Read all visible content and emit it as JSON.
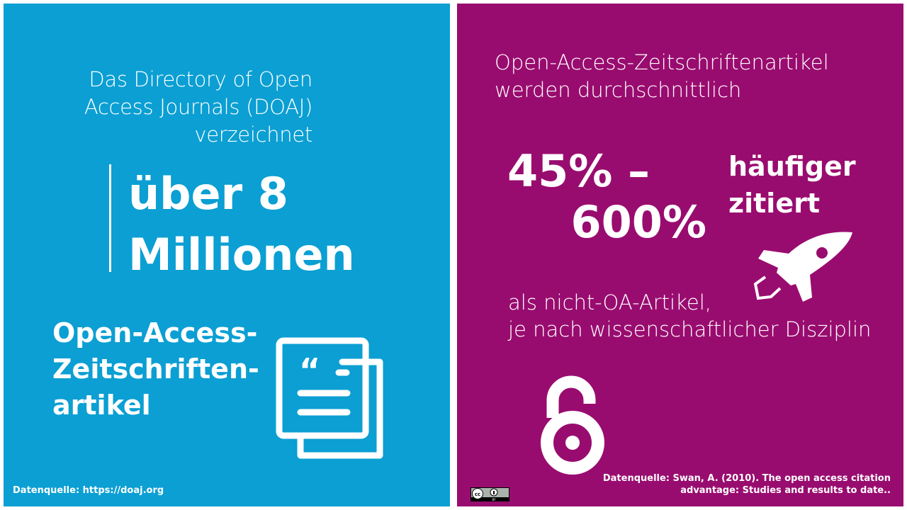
{
  "colors": {
    "left_bg": "#0b9fd3",
    "right_bg": "#990c6f",
    "text": "#ffffff"
  },
  "left": {
    "intro": [
      "Das Directory of Open",
      "Access Journals (DOAJ)",
      "verzeichnet"
    ],
    "big": [
      "über 8",
      "Millionen"
    ],
    "subject": [
      "Open-Access-",
      "Zeitschriften-",
      "artikel"
    ],
    "icon": "document-quote-icon",
    "source": "Datenquelle: https://doaj.org"
  },
  "right": {
    "heading": [
      "Open-Access-Zeitschriftenartikel",
      "werden durchschnittlich"
    ],
    "range_low": "45% –",
    "range_high": "600%",
    "more": [
      "häufiger",
      "zitiert"
    ],
    "rocket_icon": "rocket-icon",
    "comparison": [
      "als nicht-OA-Artikel,",
      "je nach wissenschaftlicher Disziplin"
    ],
    "oa_icon": "open-access-lock-icon",
    "source": [
      "Datenquelle: Swan, A. (2010). The open access citation",
      "advantage: Studies and results to date.."
    ],
    "license_badge": "CC BY"
  }
}
